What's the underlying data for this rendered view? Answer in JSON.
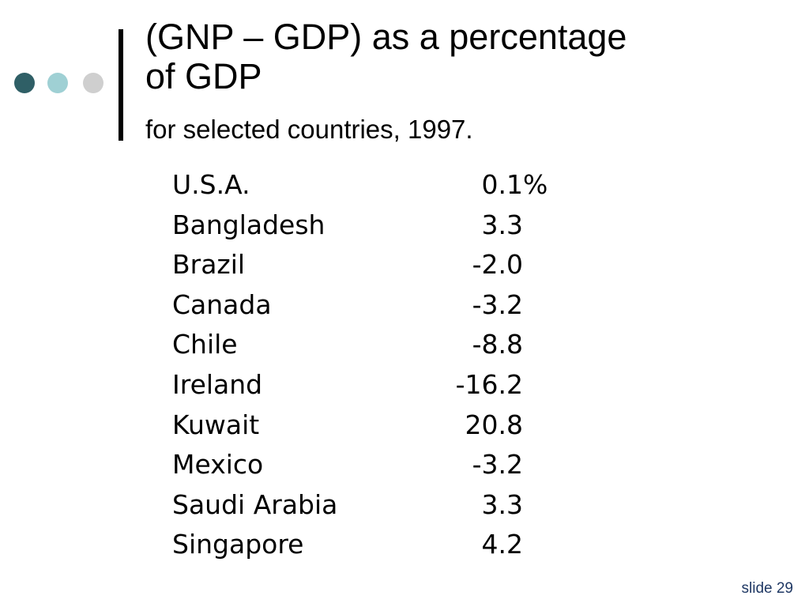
{
  "title_line_1": "(GNP – GDP) as a percentage",
  "title_line_2": "of GDP",
  "subtitle": "for selected countries, 1997.",
  "table": {
    "rows": [
      {
        "country": "U.S.A.",
        "value": "0.1",
        "unit": "%"
      },
      {
        "country": "Bangladesh",
        "value": "3.3",
        "unit": ""
      },
      {
        "country": "Brazil",
        "value": "-2.0",
        "unit": ""
      },
      {
        "country": "Canada",
        "value": "-3.2",
        "unit": ""
      },
      {
        "country": "Chile",
        "value": "-8.8",
        "unit": ""
      },
      {
        "country": "Ireland",
        "value": "-16.2",
        "unit": ""
      },
      {
        "country": "Kuwait",
        "value": "20.8",
        "unit": ""
      },
      {
        "country": "Mexico",
        "value": "-3.2",
        "unit": ""
      },
      {
        "country": "Saudi Arabia",
        "value": "3.3",
        "unit": ""
      },
      {
        "country": "Singapore",
        "value": "4.2",
        "unit": ""
      }
    ]
  },
  "slide_number": "slide 29",
  "colors": {
    "dot_1": "#2f5f66",
    "dot_2": "#9fd0d4",
    "dot_3": "#cfcfcf",
    "slide_number": "#1f3864"
  }
}
